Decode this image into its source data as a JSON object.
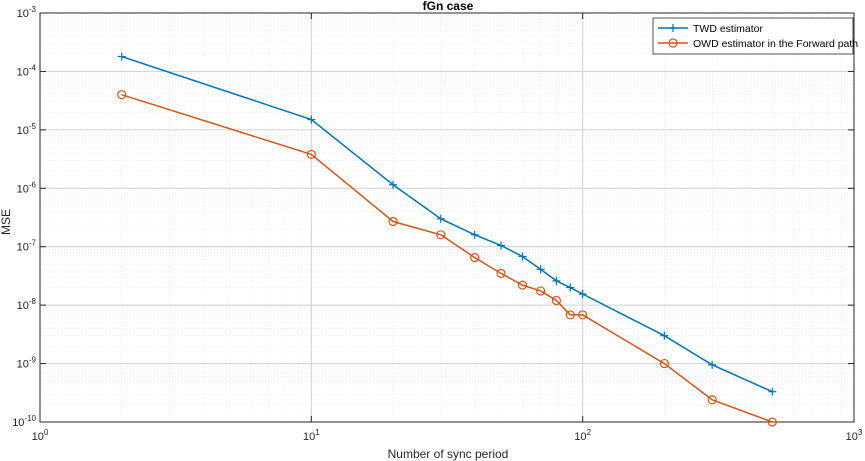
{
  "chart_data": {
    "type": "line",
    "title": "fGn case",
    "xlabel": "Number of sync period",
    "ylabel": "MSE",
    "xscale": "log",
    "yscale": "log",
    "xlim": [
      1,
      1000
    ],
    "ylim": [
      1e-10,
      0.001
    ],
    "grid": true,
    "minor_grid": true,
    "legend_position": "top-right",
    "x_ticks": [
      {
        "base": "10",
        "exp": "0"
      },
      {
        "base": "10",
        "exp": "1"
      },
      {
        "base": "10",
        "exp": "2"
      },
      {
        "base": "10",
        "exp": "3"
      }
    ],
    "y_ticks": [
      {
        "base": "10",
        "exp": "-10"
      },
      {
        "base": "10",
        "exp": "-9"
      },
      {
        "base": "10",
        "exp": "-8"
      },
      {
        "base": "10",
        "exp": "-7"
      },
      {
        "base": "10",
        "exp": "-6"
      },
      {
        "base": "10",
        "exp": "-5"
      },
      {
        "base": "10",
        "exp": "-4"
      },
      {
        "base": "10",
        "exp": "-3"
      }
    ],
    "x": [
      2,
      10,
      20,
      30,
      40,
      50,
      60,
      70,
      80,
      90,
      100,
      200,
      300,
      500
    ],
    "series": [
      {
        "name": "TWD estimator",
        "color": "#0072BD",
        "marker": "plus",
        "values": [
          0.00018,
          1.5e-05,
          1.15e-06,
          3e-07,
          1.6e-07,
          1.05e-07,
          6.8e-08,
          4.1e-08,
          2.6e-08,
          2e-08,
          1.55e-08,
          3e-09,
          9.5e-10,
          3.3e-10
        ]
      },
      {
        "name": "OWD estimator in the Forward path",
        "color": "#D95319",
        "marker": "circle",
        "values": [
          4e-05,
          3.8e-06,
          2.7e-07,
          1.6e-07,
          6.5e-08,
          3.5e-08,
          2.2e-08,
          1.75e-08,
          1.2e-08,
          6.8e-09,
          6.8e-09,
          1e-09,
          2.4e-10,
          1e-10
        ]
      }
    ]
  }
}
